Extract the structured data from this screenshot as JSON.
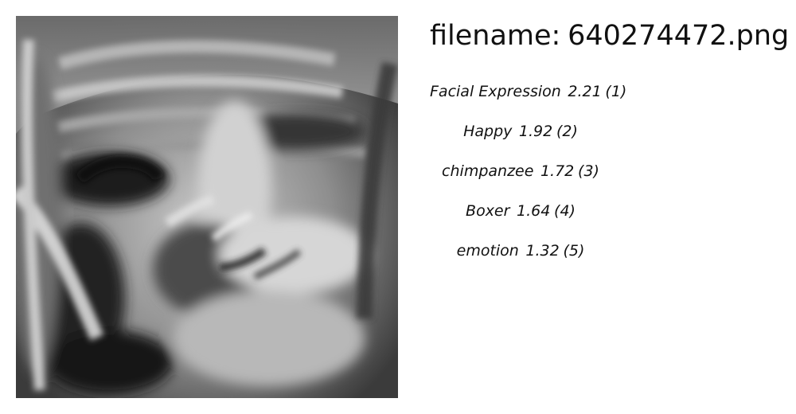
{
  "header": {
    "filename_prefix": "filename:",
    "filename": "640274472.png"
  },
  "photo": {
    "icon": "grayscale-face-photo"
  },
  "results": [
    {
      "label": "Facial Expression",
      "score": "2.21",
      "rank": "(1)"
    },
    {
      "label": "Happy",
      "score": "1.92",
      "rank": "(2)"
    },
    {
      "label": "chimpanzee",
      "score": "1.72",
      "rank": "(3)"
    },
    {
      "label": "Boxer",
      "score": "1.64",
      "rank": "(4)"
    },
    {
      "label": "emotion",
      "score": "1.32",
      "rank": "(5)"
    }
  ]
}
